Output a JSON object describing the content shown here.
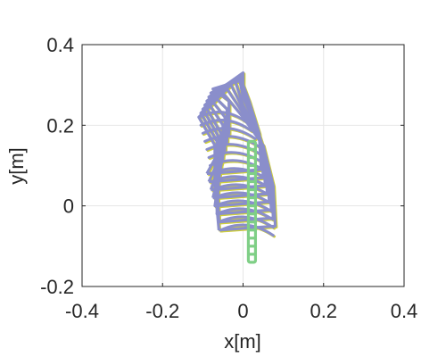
{
  "chart_data": {
    "type": "line",
    "title": "",
    "xlabel": "x[m]",
    "ylabel": "y[m]",
    "xlim": [
      -0.4,
      0.4
    ],
    "ylim": [
      -0.2,
      0.4
    ],
    "xticks": [
      -0.4,
      -0.2,
      0,
      0.2,
      0.4
    ],
    "yticks": [
      -0.2,
      0,
      0.2,
      0.4
    ],
    "xtick_labels": [
      "-0.4",
      "-0.2",
      "0",
      "0.2",
      "0.4"
    ],
    "ytick_labels": [
      "-0.2",
      "0",
      "0.2",
      "0.4"
    ],
    "grid": true,
    "legend": "none",
    "colors": {
      "purple": "#8a8ecb",
      "yellow": "#cfcf38",
      "green": "#7fcf86",
      "axis": "#262626",
      "grid": "#e6e6e6"
    },
    "series": [
      {
        "style": "purple outer contours",
        "color": "#8a8ecb",
        "contours": [
          [
            [
              -0.06,
              -0.06
            ],
            [
              0.08,
              -0.05
            ],
            [
              0.075,
              0.05
            ],
            [
              0.05,
              0.15
            ],
            [
              0.0,
              0.22
            ],
            [
              -0.05,
              0.28
            ],
            [
              -0.11,
              0.22
            ],
            [
              -0.07,
              0.15
            ],
            [
              -0.07,
              0.05
            ],
            [
              -0.06,
              -0.06
            ]
          ],
          [
            [
              -0.06,
              -0.04
            ],
            [
              0.075,
              -0.03
            ],
            [
              0.07,
              0.06
            ],
            [
              0.045,
              0.16
            ],
            [
              0.0,
              0.23
            ],
            [
              -0.04,
              0.29
            ],
            [
              -0.105,
              0.23
            ],
            [
              -0.065,
              0.16
            ],
            [
              -0.065,
              0.06
            ],
            [
              -0.06,
              -0.04
            ]
          ],
          [
            [
              -0.065,
              -0.02
            ],
            [
              0.07,
              -0.01
            ],
            [
              0.065,
              0.08
            ],
            [
              0.04,
              0.17
            ],
            [
              0.0,
              0.24
            ],
            [
              -0.03,
              0.3
            ],
            [
              -0.1,
              0.24
            ],
            [
              -0.06,
              0.17
            ],
            [
              -0.06,
              0.08
            ],
            [
              -0.065,
              -0.02
            ]
          ],
          [
            [
              -0.07,
              0.0
            ],
            [
              0.065,
              0.01
            ],
            [
              0.06,
              0.1
            ],
            [
              0.035,
              0.18
            ],
            [
              0.0,
              0.25
            ],
            [
              -0.02,
              0.31
            ],
            [
              -0.095,
              0.25
            ],
            [
              -0.055,
              0.18
            ],
            [
              -0.055,
              0.1
            ],
            [
              -0.07,
              0.0
            ]
          ],
          [
            [
              -0.075,
              0.02
            ],
            [
              0.06,
              0.03
            ],
            [
              0.055,
              0.12
            ],
            [
              0.03,
              0.2
            ],
            [
              0.0,
              0.27
            ],
            [
              -0.01,
              0.32
            ],
            [
              -0.09,
              0.26
            ],
            [
              -0.05,
              0.2
            ],
            [
              -0.05,
              0.12
            ],
            [
              -0.075,
              0.02
            ]
          ],
          [
            [
              -0.08,
              0.04
            ],
            [
              0.055,
              0.05
            ],
            [
              0.05,
              0.14
            ],
            [
              0.025,
              0.22
            ],
            [
              0.0,
              0.28
            ],
            [
              0.0,
              0.33
            ],
            [
              -0.085,
              0.27
            ],
            [
              -0.045,
              0.22
            ],
            [
              -0.045,
              0.14
            ],
            [
              -0.08,
              0.04
            ]
          ],
          [
            [
              -0.085,
              0.06
            ],
            [
              0.05,
              0.07
            ],
            [
              0.045,
              0.16
            ],
            [
              0.02,
              0.24
            ],
            [
              0.0,
              0.29
            ],
            [
              -0.005,
              0.32
            ],
            [
              -0.08,
              0.28
            ],
            [
              -0.04,
              0.24
            ],
            [
              -0.04,
              0.16
            ],
            [
              -0.085,
              0.06
            ]
          ],
          [
            [
              -0.09,
              0.08
            ],
            [
              0.045,
              0.09
            ],
            [
              0.04,
              0.18
            ],
            [
              0.015,
              0.26
            ],
            [
              0.0,
              0.3
            ],
            [
              -0.01,
              0.31
            ],
            [
              -0.075,
              0.29
            ],
            [
              -0.035,
              0.26
            ],
            [
              -0.035,
              0.18
            ],
            [
              -0.09,
              0.08
            ]
          ]
        ],
        "arcs": [
          {
            "y": -0.06,
            "x0": -0.055,
            "x1": 0.075
          },
          {
            "y": -0.04,
            "x0": -0.06,
            "x1": 0.075
          },
          {
            "y": -0.02,
            "x0": -0.065,
            "x1": 0.073
          },
          {
            "y": 0.0,
            "x0": -0.07,
            "x1": 0.07
          },
          {
            "y": 0.02,
            "x0": -0.072,
            "x1": 0.068
          },
          {
            "y": 0.04,
            "x0": -0.075,
            "x1": 0.065
          },
          {
            "y": 0.06,
            "x0": -0.078,
            "x1": 0.062
          },
          {
            "y": 0.08,
            "x0": -0.08,
            "x1": 0.06
          },
          {
            "y": 0.1,
            "x0": -0.082,
            "x1": 0.055
          },
          {
            "y": 0.12,
            "x0": -0.085,
            "x1": 0.05
          },
          {
            "y": 0.14,
            "x0": -0.09,
            "x1": 0.045
          },
          {
            "y": 0.16,
            "x0": -0.095,
            "x1": 0.04
          },
          {
            "y": 0.18,
            "x0": -0.1,
            "x1": 0.03
          },
          {
            "y": 0.2,
            "x0": -0.105,
            "x1": 0.02
          },
          {
            "y": 0.22,
            "x0": -0.11,
            "x1": 0.01
          }
        ]
      },
      {
        "style": "green segmented bar",
        "color": "#7fcf86",
        "x": 0.022,
        "y_bottom": -0.14,
        "y_top": 0.16,
        "segments": 15
      }
    ]
  }
}
